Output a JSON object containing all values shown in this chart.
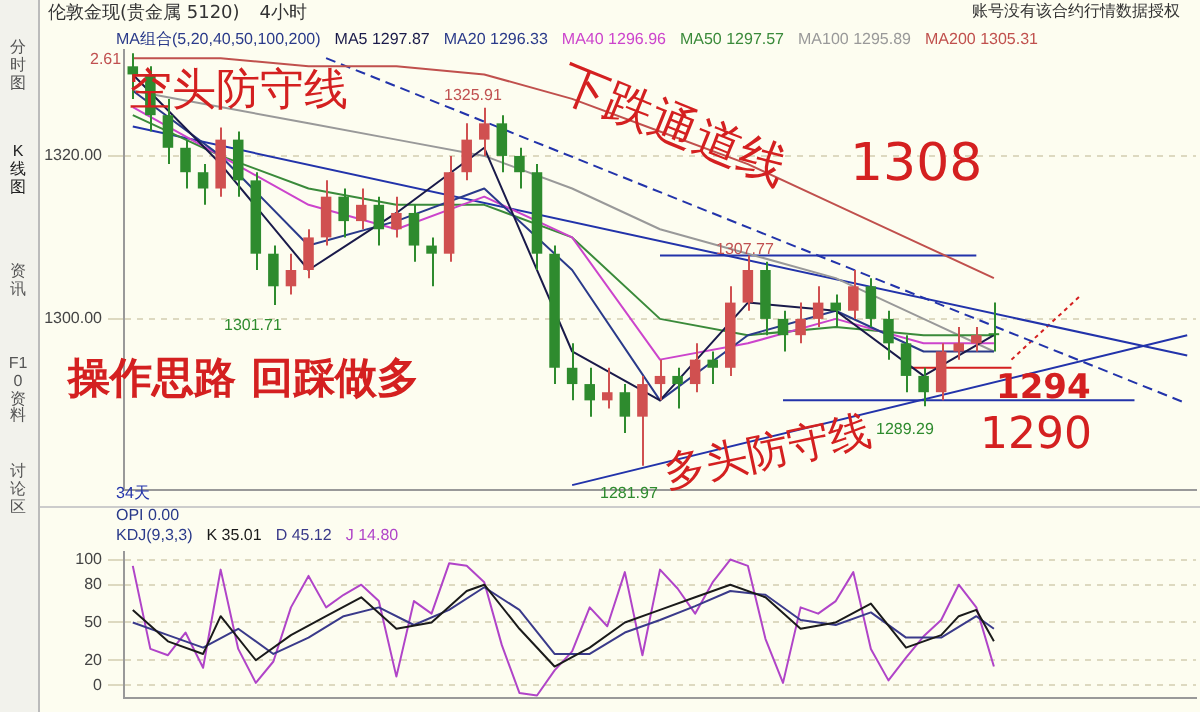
{
  "chart_data": [
    {
      "type": "candlestick",
      "title": "伦敦金现(贵金属 5120)",
      "subtitle": "4小时",
      "legend_title": "MA组合(5,20,40,50,100,200)",
      "legend": "top left",
      "grid": "y",
      "tick_labels": "y",
      "categories": [
        null,
        null,
        null,
        null,
        null,
        null,
        null,
        null,
        null,
        null,
        null,
        null,
        null,
        null,
        null,
        null,
        null,
        null,
        null,
        null,
        null,
        null,
        null,
        null,
        null,
        null,
        null,
        null,
        null,
        null,
        null,
        null,
        null,
        null,
        null,
        null,
        null,
        null,
        null,
        null,
        null,
        null,
        null,
        null,
        null,
        null,
        null,
        null,
        null,
        null,
        null,
        null,
        null,
        null,
        null,
        null,
        null,
        null,
        null,
        null,
        null
      ],
      "ohlc": [
        [
          1331,
          1332.61,
          1327,
          1330
        ],
        [
          1330,
          1331,
          1323,
          1325
        ],
        [
          1325,
          1327,
          1319,
          1321
        ],
        [
          1321,
          1322,
          1316,
          1318
        ],
        [
          1318,
          1319,
          1314,
          1316
        ],
        [
          1316,
          1323.5,
          1315,
          1322
        ],
        [
          1322,
          1323,
          1315,
          1317
        ],
        [
          1317,
          1318,
          1306,
          1308
        ],
        [
          1308,
          1309,
          1301.71,
          1304
        ],
        [
          1304,
          1308,
          1303,
          1306
        ],
        [
          1306,
          1311,
          1305,
          1310
        ],
        [
          1310,
          1317,
          1309,
          1315
        ],
        [
          1315,
          1316,
          1310,
          1312
        ],
        [
          1312,
          1316,
          1311,
          1314
        ],
        [
          1314,
          1315,
          1309,
          1311
        ],
        [
          1311,
          1315,
          1310,
          1313
        ],
        [
          1313,
          1314,
          1307,
          1309
        ],
        [
          1309,
          1310,
          1304,
          1308
        ],
        [
          1308,
          1320,
          1307,
          1318
        ],
        [
          1318,
          1324,
          1317,
          1322
        ],
        [
          1322,
          1325.91,
          1320,
          1324
        ],
        [
          1324,
          1325,
          1318,
          1320
        ],
        [
          1320,
          1321,
          1316,
          1318
        ],
        [
          1318,
          1319,
          1306,
          1308
        ],
        [
          1308,
          1309,
          1292,
          1294
        ],
        [
          1294,
          1297,
          1290,
          1292
        ],
        [
          1292,
          1294,
          1288,
          1290
        ],
        [
          1290,
          1294,
          1289,
          1291
        ],
        [
          1291,
          1292,
          1286,
          1288
        ],
        [
          1288,
          1293,
          1281.97,
          1292
        ],
        [
          1292,
          1295,
          1290,
          1293
        ],
        [
          1293,
          1294,
          1289,
          1292
        ],
        [
          1292,
          1297,
          1291,
          1295
        ],
        [
          1295,
          1296,
          1292,
          1294
        ],
        [
          1294,
          1304,
          1293,
          1302
        ],
        [
          1302,
          1307.77,
          1301,
          1306
        ],
        [
          1306,
          1307,
          1298,
          1300
        ],
        [
          1300,
          1301,
          1296,
          1298
        ],
        [
          1298,
          1302,
          1297,
          1300
        ],
        [
          1300,
          1304,
          1299,
          1302
        ],
        [
          1302,
          1303,
          1299,
          1301
        ],
        [
          1301,
          1306,
          1300,
          1304
        ],
        [
          1304,
          1305,
          1299,
          1300
        ],
        [
          1300,
          1301,
          1295,
          1297
        ],
        [
          1297,
          1298,
          1291,
          1293
        ],
        [
          1293,
          1294,
          1289.29,
          1291
        ],
        [
          1291,
          1297,
          1290,
          1296
        ],
        [
          1296,
          1299,
          1295,
          1297
        ],
        [
          1297,
          1299,
          1296,
          1298
        ],
        [
          1298,
          1302,
          1296,
          1298
        ],
        null,
        null,
        null,
        null,
        null,
        null,
        null,
        null,
        null,
        null,
        null
      ],
      "colors": [
        "#2e8b2e",
        "#2e8b2e",
        "#2e8b2e",
        "#2e8b2e",
        "#2e8b2e",
        "#d05050",
        "#2e8b2e",
        "#2e8b2e",
        "#2e8b2e",
        "#d05050",
        "#d05050",
        "#d05050",
        "#2e8b2e",
        "#d05050",
        "#2e8b2e",
        "#d05050",
        "#2e8b2e",
        "#2e8b2e",
        "#d05050",
        "#d05050",
        "#d05050",
        "#2e8b2e",
        "#2e8b2e",
        "#2e8b2e",
        "#2e8b2e",
        "#2e8b2e",
        "#2e8b2e",
        "#d05050",
        "#2e8b2e",
        "#d05050",
        "#d05050",
        "#2e8b2e",
        "#d05050",
        "#2e8b2e",
        "#d05050",
        "#d05050",
        "#2e8b2e",
        "#2e8b2e",
        "#d05050",
        "#d05050",
        "#2e8b2e",
        "#d05050",
        "#2e8b2e",
        "#2e8b2e",
        "#2e8b2e",
        "#2e8b2e",
        "#d05050",
        "#d05050",
        "#d05050",
        "#2e8b2e",
        null,
        null,
        null,
        null,
        null,
        null,
        null,
        null,
        null,
        null,
        null
      ],
      "series": [
        {
          "type": "line",
          "name": "MA5 1297.87",
          "color": "#1a1a4a",
          "values": [
            1330,
            null,
            null,
            null,
            null,
            1319,
            null,
            null,
            null,
            null,
            1306,
            null,
            null,
            null,
            null,
            1313,
            null,
            null,
            null,
            null,
            1321,
            null,
            null,
            null,
            null,
            1296,
            null,
            null,
            null,
            null,
            1290,
            null,
            null,
            null,
            null,
            1302,
            null,
            null,
            null,
            null,
            1301,
            null,
            null,
            null,
            null,
            1293,
            null,
            null,
            null,
            1298,
            null,
            null,
            null,
            null,
            null,
            null,
            null,
            null,
            null,
            null,
            null
          ]
        },
        {
          "type": "line",
          "name": "MA20 1296.33",
          "color": "#2a3a8a",
          "values": [
            1328,
            null,
            null,
            null,
            null,
            1320,
            null,
            null,
            null,
            null,
            1309,
            null,
            null,
            null,
            null,
            1312,
            null,
            null,
            null,
            null,
            1316,
            null,
            null,
            null,
            null,
            1306,
            null,
            null,
            null,
            null,
            1290,
            null,
            null,
            null,
            null,
            1298,
            null,
            null,
            null,
            null,
            1301,
            null,
            null,
            null,
            null,
            1296,
            null,
            null,
            null,
            1296,
            null,
            null,
            null,
            null,
            null,
            null,
            null,
            null,
            null,
            null,
            null
          ]
        },
        {
          "type": "line",
          "name": "MA40 1296.96",
          "color": "#cc44cc",
          "values": [
            1326,
            null,
            null,
            null,
            null,
            1320,
            null,
            null,
            null,
            null,
            1314,
            null,
            null,
            null,
            null,
            1311,
            null,
            null,
            null,
            null,
            1315,
            null,
            null,
            null,
            null,
            1310,
            null,
            null,
            null,
            null,
            1295,
            null,
            null,
            null,
            null,
            1297,
            null,
            null,
            null,
            null,
            1300,
            null,
            null,
            null,
            null,
            1297,
            null,
            null,
            null,
            1297,
            null,
            null,
            null,
            null,
            null,
            null,
            null,
            null,
            null,
            null,
            null
          ]
        },
        {
          "type": "line",
          "name": "MA50 1297.57",
          "color": "#3a8a3a",
          "values": [
            1325,
            null,
            null,
            null,
            null,
            1320,
            null,
            null,
            null,
            null,
            1316,
            null,
            null,
            null,
            null,
            1314,
            null,
            null,
            null,
            null,
            1314,
            null,
            null,
            null,
            null,
            1310,
            null,
            null,
            null,
            null,
            1300,
            null,
            null,
            null,
            null,
            1298,
            null,
            null,
            null,
            null,
            1299,
            null,
            null,
            null,
            null,
            1298,
            null,
            null,
            null,
            1298,
            null,
            null,
            null,
            null,
            null,
            null,
            null,
            null,
            null,
            null,
            null
          ]
        },
        {
          "type": "line",
          "name": "MA100 1295.89",
          "color": "#999999",
          "values": [
            1328,
            null,
            null,
            null,
            null,
            1326,
            null,
            null,
            null,
            null,
            1324,
            null,
            null,
            null,
            null,
            1322,
            null,
            null,
            null,
            null,
            1320,
            null,
            null,
            null,
            null,
            1316,
            null,
            null,
            null,
            null,
            1311,
            null,
            null,
            null,
            null,
            1308,
            null,
            null,
            null,
            null,
            1305,
            null,
            null,
            null,
            null,
            1300,
            null,
            null,
            null,
            1296,
            null,
            null,
            null,
            null,
            null,
            null,
            null,
            null,
            null,
            null,
            null
          ]
        },
        {
          "type": "line",
          "name": "MA200 1305.31",
          "color": "#c0504d",
          "values": [
            1332,
            null,
            null,
            null,
            null,
            1332,
            null,
            null,
            null,
            null,
            1331,
            null,
            null,
            null,
            null,
            1331,
            null,
            null,
            null,
            null,
            1330,
            null,
            null,
            null,
            null,
            1327,
            null,
            null,
            null,
            null,
            1323,
            null,
            null,
            null,
            null,
            1319,
            null,
            null,
            null,
            null,
            1314,
            null,
            null,
            null,
            null,
            1309,
            null,
            null,
            null,
            1305,
            null,
            null,
            null,
            null,
            null,
            null,
            null,
            null,
            null,
            null,
            null
          ]
        },
        {
          "type": "line",
          "color": "#2233aa",
          "values": [
            1323.6,
            null,
            null,
            null,
            null,
            null,
            null,
            null,
            null,
            null,
            null,
            null,
            null,
            null,
            null,
            null,
            null,
            null,
            null,
            null,
            null,
            null,
            null,
            null,
            null,
            null,
            null,
            null,
            null,
            null,
            null,
            null,
            null,
            null,
            null,
            null,
            null,
            null,
            null,
            null,
            null,
            null,
            null,
            null,
            null,
            null,
            null,
            null,
            null,
            null,
            null,
            null,
            null,
            null,
            null,
            null,
            null,
            null,
            null,
            null,
            1295.5
          ]
        },
        {
          "type": "line",
          "color": "#2233aa",
          "line_style": "dashed",
          "values": [
            null,
            null,
            null,
            null,
            null,
            null,
            null,
            null,
            null,
            null,
            null,
            1332,
            null,
            null,
            null,
            null,
            null,
            null,
            null,
            null,
            null,
            null,
            null,
            null,
            null,
            null,
            null,
            null,
            null,
            null,
            null,
            null,
            null,
            null,
            null,
            null,
            null,
            null,
            null,
            null,
            null,
            null,
            null,
            null,
            null,
            null,
            null,
            null,
            null,
            null,
            null,
            null,
            null,
            null,
            null,
            null,
            null,
            null,
            null,
            null,
            1289.6
          ]
        },
        {
          "type": "line",
          "color": "#2233aa",
          "values": [
            null,
            null,
            null,
            null,
            null,
            null,
            null,
            null,
            null,
            null,
            null,
            null,
            null,
            null,
            null,
            null,
            null,
            null,
            null,
            null,
            null,
            null,
            null,
            null,
            null,
            1279.6,
            null,
            null,
            null,
            null,
            null,
            null,
            null,
            null,
            null,
            null,
            null,
            null,
            null,
            null,
            null,
            null,
            null,
            null,
            null,
            null,
            null,
            null,
            null,
            null,
            null,
            null,
            null,
            null,
            null,
            null,
            null,
            null,
            null,
            null,
            1298
          ]
        },
        {
          "type": "line",
          "color": "#2233aa",
          "values": [
            null,
            null,
            null,
            null,
            null,
            null,
            null,
            null,
            null,
            null,
            null,
            null,
            null,
            null,
            null,
            null,
            null,
            null,
            null,
            null,
            null,
            null,
            null,
            null,
            null,
            null,
            null,
            null,
            null,
            null,
            1307.77,
            null,
            null,
            null,
            null,
            null,
            null,
            null,
            null,
            null,
            null,
            null,
            null,
            null,
            null,
            null,
            null,
            null,
            1307.77,
            null,
            null,
            null,
            null,
            null,
            null,
            null,
            null,
            null,
            null,
            null,
            null
          ]
        },
        {
          "type": "line",
          "color": "#2233aa",
          "values": [
            null,
            null,
            null,
            null,
            null,
            null,
            null,
            null,
            null,
            null,
            null,
            null,
            null,
            null,
            null,
            null,
            null,
            null,
            null,
            null,
            null,
            null,
            null,
            null,
            null,
            null,
            null,
            null,
            null,
            null,
            null,
            null,
            null,
            null,
            null,
            null,
            null,
            1290,
            null,
            null,
            null,
            null,
            null,
            null,
            null,
            null,
            null,
            null,
            null,
            null,
            null,
            null,
            null,
            null,
            null,
            null,
            null,
            1290,
            null,
            null,
            null
          ]
        },
        {
          "type": "line",
          "color": "#d42020",
          "values": [
            null,
            null,
            null,
            null,
            null,
            null,
            null,
            null,
            null,
            null,
            null,
            null,
            null,
            null,
            null,
            null,
            null,
            null,
            null,
            null,
            null,
            null,
            null,
            null,
            null,
            null,
            null,
            null,
            null,
            null,
            null,
            null,
            null,
            null,
            null,
            null,
            null,
            null,
            null,
            null,
            null,
            null,
            null,
            null,
            1294,
            null,
            null,
            null,
            null,
            null,
            1294,
            null,
            null,
            null,
            null,
            null,
            null,
            null,
            null,
            null,
            null
          ]
        },
        {
          "type": "line",
          "color": "#d42020",
          "line_style": "dotted",
          "values": [
            null,
            null,
            null,
            null,
            null,
            null,
            null,
            null,
            null,
            null,
            null,
            null,
            null,
            null,
            null,
            null,
            null,
            null,
            null,
            null,
            null,
            null,
            null,
            null,
            null,
            null,
            null,
            null,
            null,
            null,
            null,
            null,
            null,
            null,
            null,
            null,
            null,
            null,
            null,
            null,
            null,
            null,
            null,
            null,
            null,
            null,
            null,
            null,
            null,
            null,
            1295,
            null,
            null,
            null,
            1303,
            null,
            null,
            null,
            null,
            null,
            null
          ]
        }
      ],
      "ylim": [
        1279,
        1333
      ],
      "yticks": [
        {
          "value": 1320,
          "label": "1320.00"
        },
        {
          "value": 1300,
          "label": "1300.00"
        }
      ],
      "annotations": [
        "空头防守线",
        "下跌通道线",
        "1308",
        "操作思路  回踩做多",
        "多头防守线",
        "1290",
        "1294",
        "1301.71",
        "1325.91",
        "1307.77",
        "1289.29",
        "1281.97",
        "2.61",
        "34天",
        "分时图",
        "K线图",
        "资讯",
        "F10资料",
        "讨论区",
        "账号没有该合约行情数据授权"
      ]
    },
    {
      "type": "line",
      "legend_title": "KDJ(9,3,3)",
      "legend": "top left",
      "grid": "y",
      "tick_labels": "y",
      "categories": [
        null,
        null,
        null,
        null,
        null,
        null,
        null,
        null,
        null,
        null,
        null,
        null,
        null,
        null,
        null,
        null,
        null,
        null,
        null,
        null,
        null,
        null,
        null,
        null,
        null,
        null,
        null,
        null,
        null,
        null,
        null,
        null,
        null,
        null,
        null,
        null,
        null,
        null,
        null,
        null,
        null,
        null,
        null,
        null,
        null,
        null,
        null,
        null,
        null,
        null,
        null,
        null,
        null,
        null,
        null,
        null,
        null,
        null,
        null,
        null,
        null
      ],
      "series": [
        {
          "type": "line",
          "name": "K 35.01",
          "color": "#1a1a1a",
          "values": [
            60,
            null,
            35,
            null,
            25,
            55,
            null,
            20,
            null,
            40,
            null,
            55,
            null,
            70,
            null,
            45,
            null,
            50,
            null,
            75,
            80,
            null,
            45,
            null,
            15,
            null,
            30,
            null,
            50,
            null,
            60,
            null,
            70,
            null,
            80,
            null,
            70,
            null,
            45,
            null,
            50,
            null,
            65,
            null,
            30,
            null,
            40,
            55,
            60,
            35,
            null,
            null,
            null,
            null,
            null,
            null,
            null,
            null,
            null,
            null,
            null
          ]
        },
        {
          "type": "line",
          "name": "D 45.12",
          "color": "#3a3a8a",
          "values": [
            50,
            null,
            40,
            null,
            30,
            null,
            45,
            null,
            25,
            null,
            38,
            null,
            55,
            null,
            62,
            null,
            48,
            null,
            60,
            null,
            78,
            null,
            60,
            null,
            25,
            null,
            25,
            null,
            42,
            null,
            52,
            null,
            63,
            null,
            75,
            null,
            72,
            null,
            52,
            null,
            48,
            null,
            58,
            null,
            38,
            null,
            38,
            null,
            55,
            45,
            null,
            null,
            null,
            null,
            null,
            null,
            null,
            null,
            null,
            null,
            null
          ]
        },
        {
          "type": "line",
          "name": "J 14.80",
          "color": "#b044c8",
          "values": [
            95,
            29,
            24,
            42,
            14,
            92,
            29,
            2,
            19,
            62,
            87,
            62,
            72,
            80,
            67,
            7,
            67,
            57,
            97,
            95,
            82,
            32,
            -6,
            -8,
            12,
            27,
            62,
            47,
            90,
            24,
            92,
            77,
            57,
            82,
            100,
            95,
            37,
            2,
            62,
            57,
            67,
            90,
            29,
            4,
            22,
            39,
            52,
            80,
            62,
            15,
            null,
            null,
            null,
            null,
            null,
            null,
            null,
            null,
            null,
            null,
            null
          ]
        }
      ],
      "ylim": [
        -10,
        106
      ],
      "yticks": [
        0,
        20,
        50,
        80,
        100
      ],
      "annotations": [
        "OPI  0.00"
      ]
    }
  ]
}
